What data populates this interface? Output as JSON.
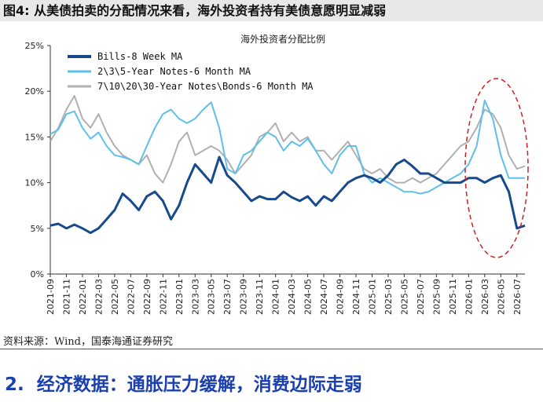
{
  "figure": {
    "label": "图4:",
    "title": "从美债拍卖的分配情况来看，海外投资者持有美债意愿明显减弱"
  },
  "source_note": "资料来源：Wind，国泰海通证券研究",
  "section_heading": {
    "number": "2.",
    "text": "经济数据：通胀压力缓解，消费边际走弱"
  },
  "chart_data": {
    "type": "line",
    "title": "海外投资者分配比例",
    "ylim": [
      0,
      25
    ],
    "yticks": [
      "0%",
      "5%",
      "10%",
      "15%",
      "20%",
      "25%"
    ],
    "x_range": [
      "2021-09",
      "2026-08"
    ],
    "x_ticks": [
      "2021-09",
      "2021-11",
      "2022-01",
      "2022-03",
      "2022-05",
      "2022-07",
      "2022-09",
      "2022-11",
      "2023-01",
      "2023-03",
      "2023-05",
      "2023-07",
      "2023-09",
      "2023-11",
      "2024-01",
      "2024-03",
      "2024-05",
      "2024-07",
      "2024-09",
      "2024-11",
      "2025-01",
      "2025-03",
      "2025-05",
      "2025-07",
      "2025-09",
      "2025-11",
      "2026-01",
      "2026-03",
      "2026-05",
      "2026-07"
    ],
    "legend_position": "top-left",
    "annotation": "red dashed ellipse highlighting 2026-03 to 2026-08",
    "colors": {
      "bills": "#174a8c",
      "notes": "#5ec0ea",
      "bonds": "#b0b0b0",
      "annotation": "#cc2222"
    },
    "series": [
      {
        "name": "Bills-8 Week MA",
        "x": [
          "2021-09",
          "2021-10",
          "2021-11",
          "2021-12",
          "2022-01",
          "2022-02",
          "2022-03",
          "2022-04",
          "2022-05",
          "2022-06",
          "2022-07",
          "2022-08",
          "2022-09",
          "2022-10",
          "2022-11",
          "2022-12",
          "2023-01",
          "2023-02",
          "2023-03",
          "2023-04",
          "2023-05",
          "2023-06",
          "2023-07",
          "2023-08",
          "2023-09",
          "2023-10",
          "2023-11",
          "2023-12",
          "2024-01",
          "2024-02",
          "2024-03",
          "2024-04",
          "2024-05",
          "2024-06",
          "2024-07",
          "2024-08",
          "2024-09",
          "2024-10",
          "2024-11",
          "2024-12",
          "2025-01",
          "2025-02",
          "2025-03",
          "2025-04",
          "2025-05",
          "2025-06",
          "2025-07",
          "2025-08",
          "2025-09",
          "2025-10",
          "2025-11",
          "2025-12",
          "2026-01",
          "2026-02",
          "2026-03",
          "2026-04",
          "2026-05",
          "2026-06",
          "2026-07",
          "2026-08"
        ],
        "values": [
          5.3,
          5.5,
          5.0,
          5.4,
          5.0,
          4.5,
          5.0,
          6.0,
          7.0,
          8.8,
          8.0,
          7.0,
          8.5,
          9.0,
          8.0,
          6.0,
          7.5,
          10.0,
          12.0,
          11.0,
          10.0,
          12.8,
          10.8,
          10.0,
          9.0,
          8.0,
          8.5,
          8.2,
          8.2,
          9.0,
          8.4,
          8.0,
          8.5,
          7.5,
          8.5,
          8.0,
          9.0,
          10.0,
          10.5,
          10.8,
          10.5,
          10.0,
          10.8,
          12.0,
          12.5,
          11.8,
          11.0,
          11.0,
          10.5,
          10.0,
          10.0,
          10.0,
          10.5,
          10.5,
          10.0,
          10.5,
          10.8,
          9.0,
          5.0,
          5.3
        ]
      },
      {
        "name": "2\\3\\5-Year Notes-6 Month MA",
        "x": [
          "2021-09",
          "2021-10",
          "2021-11",
          "2021-12",
          "2022-01",
          "2022-02",
          "2022-03",
          "2022-04",
          "2022-05",
          "2022-06",
          "2022-07",
          "2022-08",
          "2022-09",
          "2022-10",
          "2022-11",
          "2022-12",
          "2023-01",
          "2023-02",
          "2023-03",
          "2023-04",
          "2023-05",
          "2023-06",
          "2023-07",
          "2023-08",
          "2023-09",
          "2023-10",
          "2023-11",
          "2023-12",
          "2024-01",
          "2024-02",
          "2024-03",
          "2024-04",
          "2024-05",
          "2024-06",
          "2024-07",
          "2024-08",
          "2024-09",
          "2024-10",
          "2024-11",
          "2024-12",
          "2025-01",
          "2025-02",
          "2025-03",
          "2025-04",
          "2025-05",
          "2025-06",
          "2025-07",
          "2025-08",
          "2025-09",
          "2025-10",
          "2025-11",
          "2025-12",
          "2026-01",
          "2026-02",
          "2026-03",
          "2026-04",
          "2026-05",
          "2026-06",
          "2026-07",
          "2026-08"
        ],
        "values": [
          15.3,
          15.8,
          17.5,
          17.8,
          16.0,
          14.8,
          15.5,
          14.0,
          13.0,
          12.8,
          12.5,
          12.0,
          14.0,
          16.0,
          17.5,
          18.0,
          17.0,
          16.5,
          17.0,
          18.0,
          18.8,
          16.0,
          11.5,
          11.0,
          13.0,
          13.5,
          14.5,
          15.5,
          15.0,
          13.5,
          14.5,
          14.0,
          14.8,
          13.5,
          12.0,
          11.0,
          13.0,
          14.0,
          14.0,
          11.0,
          10.0,
          10.5,
          10.0,
          9.5,
          9.0,
          9.0,
          8.8,
          9.0,
          9.5,
          10.0,
          10.5,
          11.0,
          12.0,
          14.0,
          19.0,
          17.0,
          13.0,
          10.5,
          10.5,
          10.5
        ]
      },
      {
        "name": "7\\10\\20\\30-Year Notes\\Bonds-6 Month MA",
        "x": [
          "2021-09",
          "2021-10",
          "2021-11",
          "2021-12",
          "2022-01",
          "2022-02",
          "2022-03",
          "2022-04",
          "2022-05",
          "2022-06",
          "2022-07",
          "2022-08",
          "2022-09",
          "2022-10",
          "2022-11",
          "2022-12",
          "2023-01",
          "2023-02",
          "2023-03",
          "2023-04",
          "2023-05",
          "2023-06",
          "2023-07",
          "2023-08",
          "2023-09",
          "2023-10",
          "2023-11",
          "2023-12",
          "2024-01",
          "2024-02",
          "2024-03",
          "2024-04",
          "2024-05",
          "2024-06",
          "2024-07",
          "2024-08",
          "2024-09",
          "2024-10",
          "2024-11",
          "2024-12",
          "2025-01",
          "2025-02",
          "2025-03",
          "2025-04",
          "2025-05",
          "2025-06",
          "2025-07",
          "2025-08",
          "2025-09",
          "2025-10",
          "2025-11",
          "2025-12",
          "2026-01",
          "2026-02",
          "2026-03",
          "2026-04",
          "2026-05",
          "2026-06",
          "2026-07",
          "2026-08"
        ],
        "values": [
          14.5,
          16.0,
          18.0,
          19.5,
          17.0,
          16.0,
          17.5,
          15.5,
          14.0,
          13.0,
          12.5,
          12.0,
          13.0,
          11.0,
          10.0,
          12.0,
          14.5,
          15.5,
          13.0,
          13.5,
          14.0,
          13.5,
          12.5,
          11.0,
          12.0,
          13.0,
          15.0,
          15.5,
          16.5,
          14.5,
          15.5,
          14.5,
          15.0,
          13.5,
          13.5,
          12.5,
          13.5,
          14.5,
          13.0,
          11.5,
          11.0,
          11.5,
          10.5,
          10.0,
          10.0,
          10.5,
          10.0,
          10.5,
          11.0,
          12.0,
          13.0,
          14.0,
          14.5,
          16.0,
          18.0,
          17.5,
          16.0,
          13.0,
          11.5,
          11.8
        ]
      }
    ]
  }
}
